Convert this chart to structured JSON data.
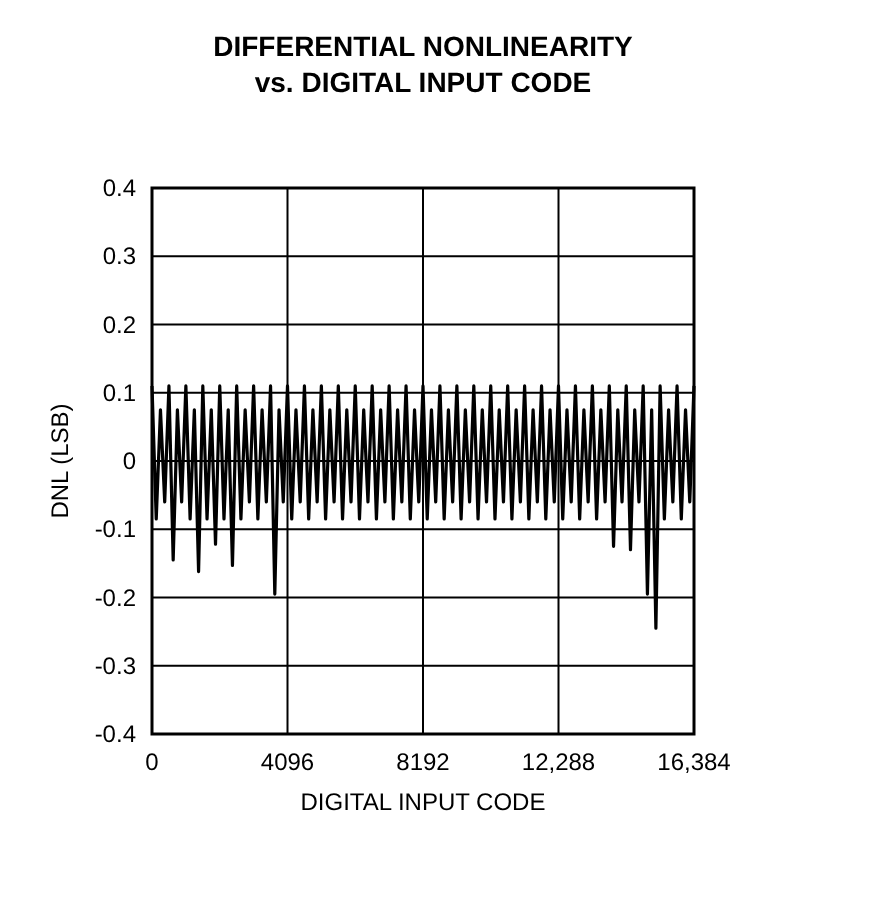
{
  "chart_data": {
    "type": "line",
    "title": "DIFFERENTIAL NONLINEARITY\nvs. DIGITAL INPUT CODE",
    "xlabel": "DIGITAL INPUT CODE",
    "ylabel": "DNL (LSB)",
    "xlim": [
      0,
      16384
    ],
    "xticks": [
      0,
      4096,
      8192,
      {
        "value": 12288,
        "label": "12,288"
      },
      {
        "value": 16384,
        "label": "16,384"
      }
    ],
    "ylim": [
      -0.4,
      0.4
    ],
    "yticks": [
      -0.4,
      -0.3,
      -0.2,
      -0.1,
      0,
      0.1,
      0.2,
      0.3,
      0.4
    ],
    "grid": true,
    "x": [
      0,
      128,
      256,
      384,
      512,
      640,
      768,
      896,
      1024,
      1152,
      1280,
      1408,
      1536,
      1664,
      1792,
      1920,
      2048,
      2176,
      2304,
      2432,
      2560,
      2688,
      2816,
      2944,
      3072,
      3200,
      3328,
      3456,
      3584,
      3712,
      3840,
      3968,
      4096,
      4224,
      4352,
      4480,
      4608,
      4736,
      4864,
      4992,
      5120,
      5248,
      5376,
      5504,
      5632,
      5760,
      5888,
      6016,
      6144,
      6272,
      6400,
      6528,
      6656,
      6784,
      6912,
      7040,
      7168,
      7296,
      7424,
      7552,
      7680,
      7808,
      7936,
      8064,
      8192,
      8320,
      8448,
      8576,
      8704,
      8832,
      8960,
      9088,
      9216,
      9344,
      9472,
      9600,
      9728,
      9856,
      9984,
      10112,
      10240,
      10368,
      10496,
      10624,
      10752,
      10880,
      11008,
      11136,
      11264,
      11392,
      11520,
      11648,
      11776,
      11904,
      12032,
      12160,
      12288,
      12416,
      12544,
      12672,
      12800,
      12928,
      13056,
      13184,
      13312,
      13440,
      13568,
      13696,
      13824,
      13952,
      14080,
      14208,
      14336,
      14464,
      14592,
      14720,
      14848,
      14976,
      15104,
      15232,
      15360,
      15488,
      15616,
      15744,
      15872,
      16000,
      16128,
      16256,
      16384
    ],
    "series": [
      {
        "color": "#000000",
        "values": [
          0.11,
          -0.085,
          0.075,
          -0.06,
          0.11,
          -0.145,
          0.075,
          -0.06,
          0.11,
          -0.085,
          0.075,
          -0.162,
          0.11,
          -0.085,
          0.075,
          -0.122,
          0.11,
          -0.085,
          0.075,
          -0.153,
          0.11,
          -0.085,
          0.075,
          -0.06,
          0.11,
          -0.085,
          0.075,
          -0.06,
          0.11,
          -0.195,
          0.075,
          -0.06,
          0.11,
          -0.085,
          0.075,
          -0.06,
          0.11,
          -0.085,
          0.075,
          -0.06,
          0.11,
          -0.085,
          0.075,
          -0.06,
          0.11,
          -0.085,
          0.075,
          -0.06,
          0.11,
          -0.085,
          0.075,
          -0.06,
          0.11,
          -0.085,
          0.075,
          -0.06,
          0.11,
          -0.085,
          0.075,
          -0.06,
          0.11,
          -0.085,
          0.075,
          -0.06,
          0.11,
          -0.085,
          0.075,
          -0.06,
          0.11,
          -0.085,
          0.075,
          -0.06,
          0.11,
          -0.085,
          0.075,
          -0.06,
          0.11,
          -0.085,
          0.075,
          -0.06,
          0.11,
          -0.085,
          0.075,
          -0.06,
          0.11,
          -0.085,
          0.075,
          -0.06,
          0.11,
          -0.085,
          0.075,
          -0.06,
          0.11,
          -0.085,
          0.075,
          -0.06,
          0.11,
          -0.085,
          0.075,
          -0.06,
          0.11,
          -0.085,
          0.075,
          -0.06,
          0.11,
          -0.085,
          0.075,
          -0.06,
          0.11,
          -0.125,
          0.075,
          -0.06,
          0.11,
          -0.13,
          0.075,
          -0.06,
          0.11,
          -0.195,
          0.075,
          -0.245,
          0.11,
          -0.085,
          0.075,
          -0.06,
          0.11,
          -0.085,
          0.075,
          -0.06,
          0.11
        ]
      }
    ]
  }
}
